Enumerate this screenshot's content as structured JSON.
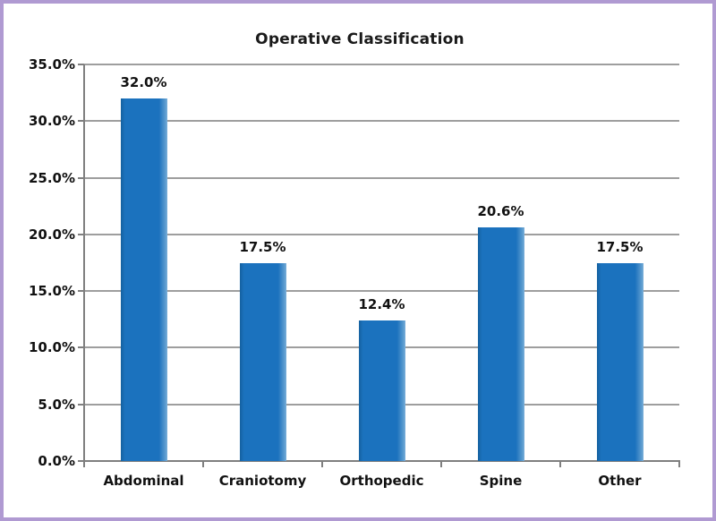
{
  "frame": {
    "border_color": "#b09ad2",
    "background_color": "#ffffff"
  },
  "chart_data": {
    "type": "bar",
    "title": "Operative Classification",
    "categories": [
      "Abdominal",
      "Craniotomy",
      "Orthopedic",
      "Spine",
      "Other"
    ],
    "values": [
      32.0,
      17.5,
      12.4,
      20.6,
      17.5
    ],
    "value_labels": [
      "32.0%",
      "17.5%",
      "12.4%",
      "20.6%",
      "17.5%"
    ],
    "xlabel": "",
    "ylabel": "",
    "ylim": [
      0,
      35
    ],
    "ytick_step": 5,
    "ytick_labels": [
      "0.0%",
      "5.0%",
      "10.0%",
      "15.0%",
      "20.0%",
      "25.0%",
      "30.0%",
      "35.0%"
    ],
    "grid": "horizontal-on",
    "legend": "none",
    "bar_color": "#1b72be",
    "gridline_color": "#9e9e9e",
    "axis_color": "#7f7f7f",
    "text_color": "#111111"
  }
}
